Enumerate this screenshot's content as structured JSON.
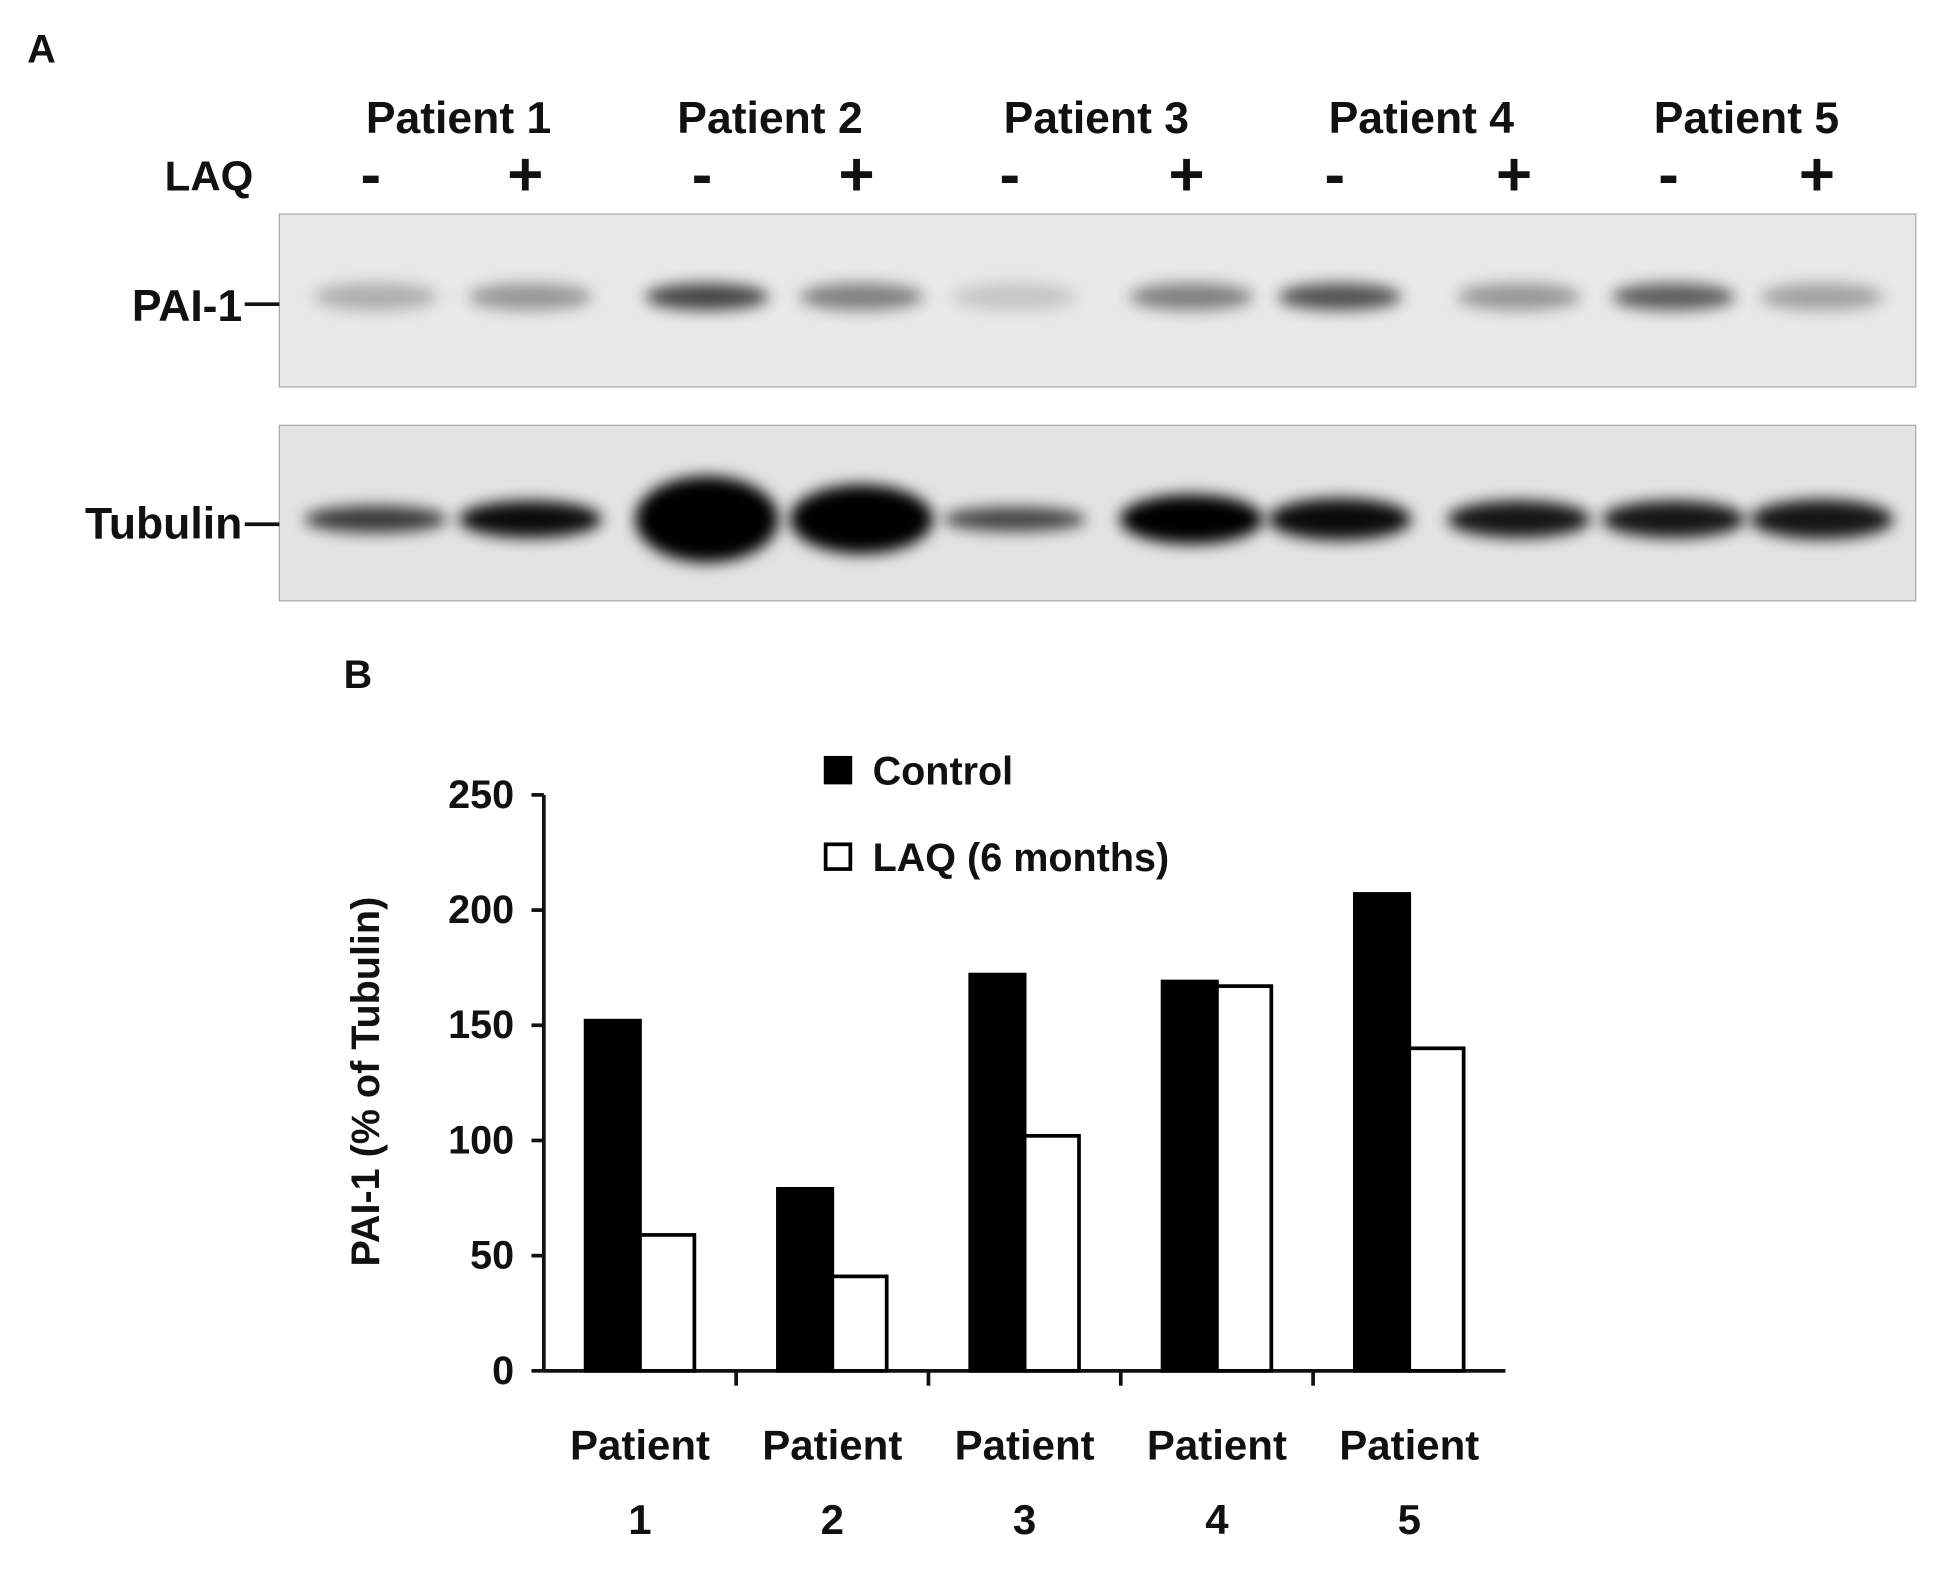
{
  "panel_a": {
    "label": "A",
    "patients": [
      "Patient 1",
      "Patient 2",
      "Patient 3",
      "Patient 4",
      "Patient 5"
    ],
    "treatment_label": "LAQ",
    "lanes": [
      "-",
      "+",
      "-",
      "+",
      "-",
      "+",
      "-",
      "+",
      "-",
      "+"
    ],
    "bands": [
      "PAI-1",
      "Tubulin"
    ]
  },
  "chart_data": {
    "type": "bar",
    "panel_label": "B",
    "y_label": "PAI-1  (% of Tubulin)",
    "categories": [
      "Patient 1",
      "Patient 2",
      "Patient 3",
      "Patient 4",
      "Patient 5"
    ],
    "series": [
      {
        "name": "Control",
        "color": "#000000",
        "values": [
          152,
          79,
          172,
          169,
          207
        ]
      },
      {
        "name": "LAQ (6 months)",
        "color": "#ffffff",
        "values": [
          59,
          41,
          102,
          167,
          140
        ]
      }
    ],
    "ylim": [
      0,
      250
    ],
    "yticks": [
      0,
      50,
      100,
      150,
      200,
      250
    ],
    "grid": false,
    "legend": "top"
  }
}
